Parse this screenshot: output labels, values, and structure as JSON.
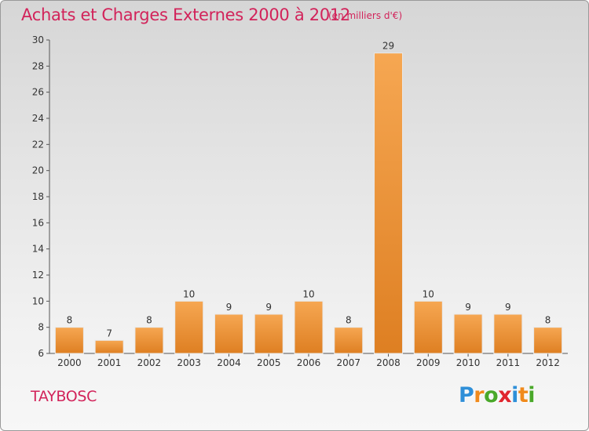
{
  "page": {
    "title": "Achats et Charges Externes 2000 à 2012",
    "unit": "(en milliers d'€)",
    "commune": "TAYBOSC",
    "logo": {
      "letters": [
        "P",
        "r",
        "o",
        "x",
        "i",
        "t",
        "i"
      ],
      "colors": [
        "#2f8fd8",
        "#f08a1c",
        "#4aa82a",
        "#e0262e",
        "#2f8fd8",
        "#f08a1c",
        "#4aa82a"
      ]
    }
  },
  "chart_data": {
    "type": "bar",
    "title": "Achats et Charges Externes 2000 à 2012",
    "subtitle": "(en milliers d'€)",
    "xlabel": "",
    "ylabel": "",
    "categories": [
      "2000",
      "2001",
      "2002",
      "2003",
      "2004",
      "2005",
      "2006",
      "2007",
      "2008",
      "2009",
      "2010",
      "2011",
      "2012"
    ],
    "values": [
      8,
      7,
      8,
      10,
      9,
      9,
      10,
      8,
      29,
      10,
      9,
      9,
      8
    ],
    "ylim": [
      6,
      30
    ],
    "yticks": [
      6,
      8,
      10,
      12,
      14,
      16,
      18,
      20,
      22,
      24,
      26,
      28,
      30
    ],
    "grid": false,
    "legend": "none",
    "bar_color": "#f39b45",
    "bar_color_dark": "#d97a20"
  }
}
